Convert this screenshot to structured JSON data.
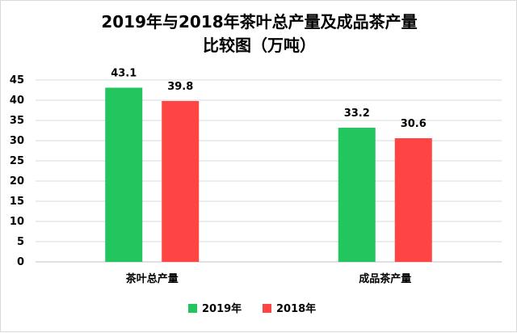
{
  "chart_data": {
    "type": "bar",
    "title_lines": [
      "2019年与2018年茶叶总产量及成品茶产量",
      "比较图（万吨）"
    ],
    "categories": [
      "茶叶总产量",
      "成品茶产量"
    ],
    "series": [
      {
        "name": "2019年",
        "values": [
          43.1,
          33.2
        ],
        "labels": [
          "43.1",
          "33.2"
        ],
        "color": "#22c55e"
      },
      {
        "name": "2018年",
        "values": [
          39.8,
          30.6
        ],
        "labels": [
          "39.8",
          "30.6"
        ],
        "color": "#ff4444"
      }
    ],
    "ylim": [
      0,
      45
    ],
    "yticks": [
      0,
      5,
      10,
      15,
      20,
      25,
      30,
      35,
      40,
      45
    ],
    "ytick_labels": [
      "0",
      "5",
      "10",
      "15",
      "20",
      "25",
      "30",
      "35",
      "40",
      "45"
    ],
    "grid": true,
    "legend_position": "bottom"
  }
}
